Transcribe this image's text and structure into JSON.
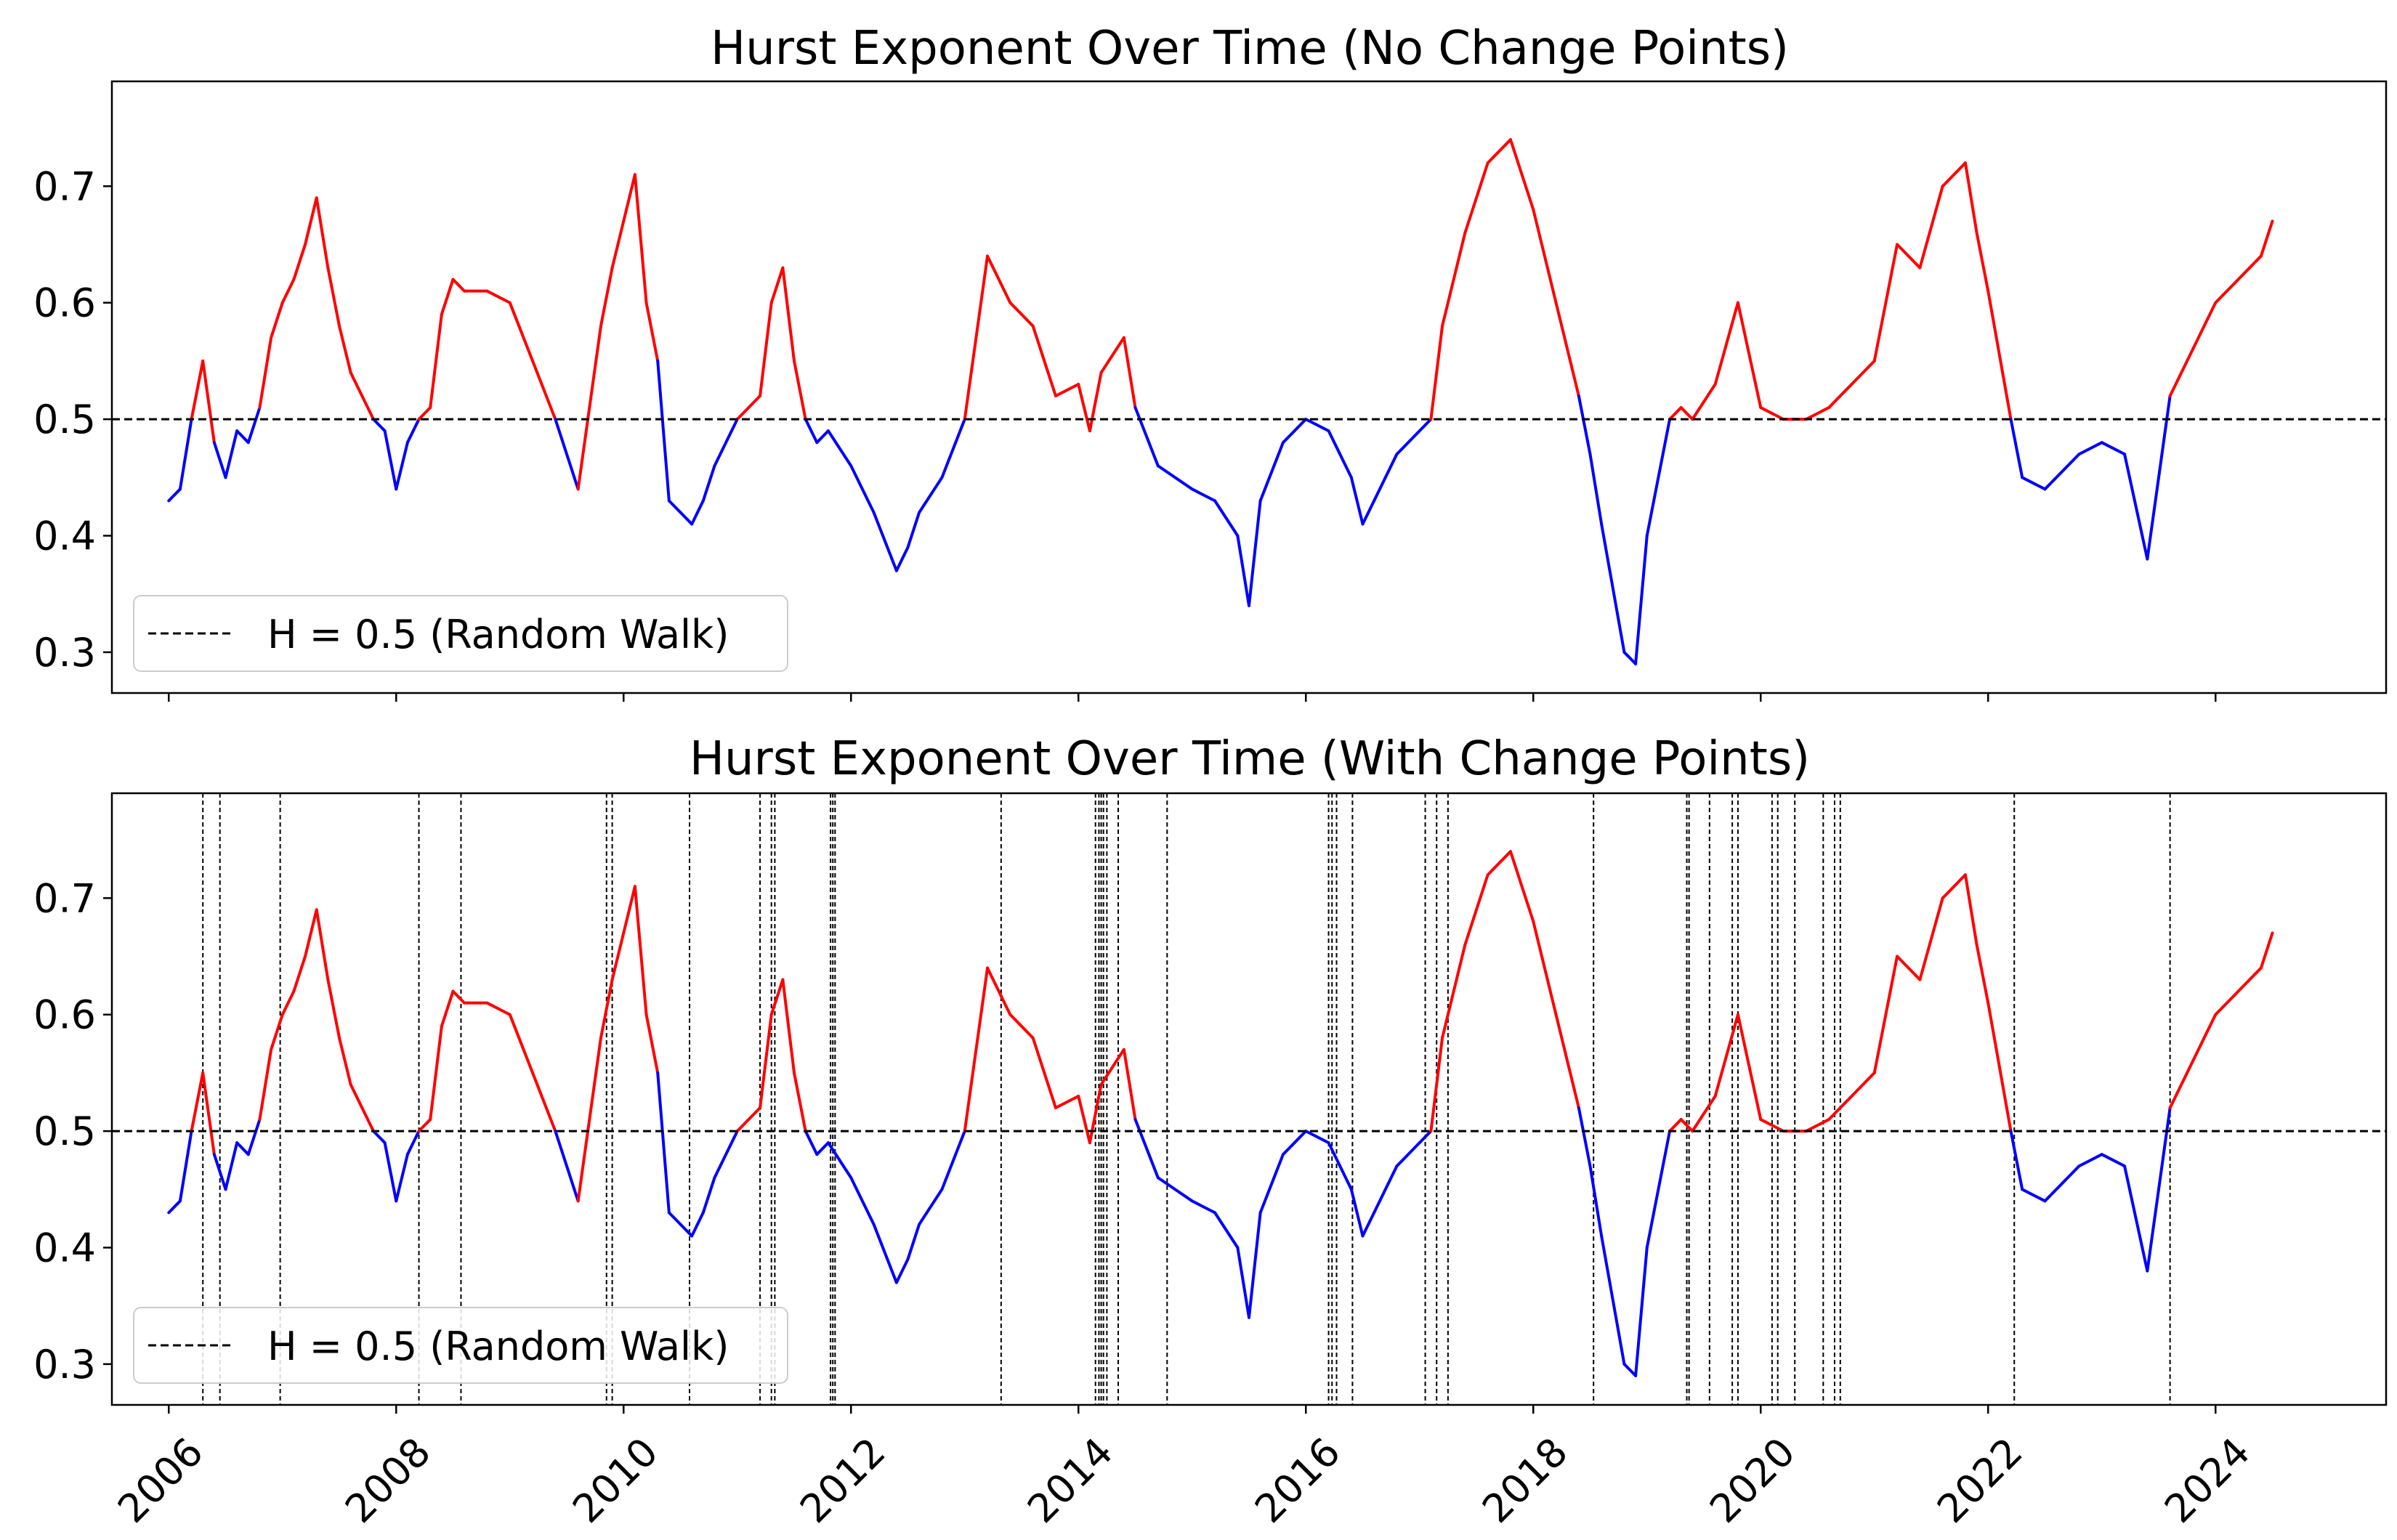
{
  "chart_data": [
    {
      "type": "line",
      "title": "Hurst Exponent Over Time (No Change Points)",
      "xlabel": "",
      "ylabel": "",
      "xlim": [
        2005.5,
        2025.5
      ],
      "ylim": [
        0.265,
        0.79
      ],
      "yticks": [
        0.3,
        0.4,
        0.5,
        0.6,
        0.7
      ],
      "ytick_labels": [
        "0.3",
        "0.4",
        "0.5",
        "0.6",
        "0.7"
      ],
      "xticks": [
        2006,
        2008,
        2010,
        2012,
        2014,
        2016,
        2018,
        2020,
        2022,
        2024
      ],
      "xtick_labels": [],
      "grid": false,
      "legend": {
        "placement": "lower-left",
        "entries": [
          "H = 0.5 (Random Walk)"
        ]
      },
      "reference_line": {
        "y": 0.5,
        "label": "H = 0.5 (Random Walk)",
        "style": "dashed",
        "color": "#000000"
      },
      "coloring": {
        "above_0.5": "#ff0000",
        "below_0.5": "#0000ff"
      },
      "series": [
        {
          "x": [
            2006.0,
            2006.1,
            2006.2,
            2006.3,
            2006.4,
            2006.5,
            2006.6,
            2006.7,
            2006.8,
            2006.9,
            2007.0,
            2007.1,
            2007.2,
            2007.3,
            2007.4,
            2007.5,
            2007.6,
            2007.7,
            2007.8,
            2007.9,
            2008.0,
            2008.1,
            2008.2,
            2008.3,
            2008.4,
            2008.5,
            2008.6,
            2008.8,
            2009.0,
            2009.2,
            2009.4,
            2009.6,
            2009.8,
            2009.9,
            2010.0,
            2010.1,
            2010.2,
            2010.3,
            2010.4,
            2010.5,
            2010.6,
            2010.7,
            2010.8,
            2011.0,
            2011.2,
            2011.3,
            2011.4,
            2011.5,
            2011.6,
            2011.7,
            2011.8,
            2012.0,
            2012.2,
            2012.4,
            2012.5,
            2012.6,
            2012.8,
            2013.0,
            2013.2,
            2013.4,
            2013.6,
            2013.8,
            2014.0,
            2014.1,
            2014.2,
            2014.4,
            2014.5,
            2014.7,
            2015.0,
            2015.2,
            2015.4,
            2015.5,
            2015.6,
            2015.8,
            2016.0,
            2016.2,
            2016.4,
            2016.5,
            2016.6,
            2016.8,
            2017.0,
            2017.1,
            2017.2,
            2017.4,
            2017.6,
            2017.8,
            2018.0,
            2018.2,
            2018.4,
            2018.5,
            2018.6,
            2018.8,
            2018.9,
            2019.0,
            2019.2,
            2019.3,
            2019.4,
            2019.6,
            2019.8,
            2020.0,
            2020.2,
            2020.4,
            2020.6,
            2020.8,
            2021.0,
            2021.2,
            2021.4,
            2021.6,
            2021.8,
            2021.9,
            2022.0,
            2022.2,
            2022.3,
            2022.5,
            2022.8,
            2023.0,
            2023.2,
            2023.4,
            2023.5,
            2023.6,
            2023.8,
            2024.0,
            2024.2,
            2024.4,
            2024.5
          ],
          "values": [
            0.43,
            0.44,
            0.5,
            0.55,
            0.48,
            0.45,
            0.49,
            0.48,
            0.51,
            0.57,
            0.6,
            0.62,
            0.65,
            0.69,
            0.63,
            0.58,
            0.54,
            0.52,
            0.5,
            0.49,
            0.44,
            0.48,
            0.5,
            0.51,
            0.59,
            0.62,
            0.61,
            0.61,
            0.6,
            0.55,
            0.5,
            0.44,
            0.58,
            0.63,
            0.67,
            0.71,
            0.6,
            0.55,
            0.43,
            0.42,
            0.41,
            0.43,
            0.46,
            0.5,
            0.52,
            0.6,
            0.63,
            0.55,
            0.5,
            0.48,
            0.49,
            0.46,
            0.42,
            0.37,
            0.39,
            0.42,
            0.45,
            0.5,
            0.64,
            0.6,
            0.58,
            0.52,
            0.53,
            0.49,
            0.54,
            0.57,
            0.51,
            0.46,
            0.44,
            0.43,
            0.4,
            0.34,
            0.43,
            0.48,
            0.5,
            0.49,
            0.45,
            0.41,
            0.43,
            0.47,
            0.49,
            0.5,
            0.58,
            0.66,
            0.72,
            0.74,
            0.68,
            0.6,
            0.52,
            0.47,
            0.41,
            0.3,
            0.29,
            0.4,
            0.5,
            0.51,
            0.5,
            0.53,
            0.6,
            0.51,
            0.5,
            0.5,
            0.51,
            0.53,
            0.55,
            0.65,
            0.63,
            0.7,
            0.72,
            0.66,
            0.61,
            0.5,
            0.45,
            0.44,
            0.47,
            0.48,
            0.47,
            0.38,
            0.45,
            0.52,
            0.56,
            0.6,
            0.62,
            0.64,
            0.67
          ]
        }
      ]
    },
    {
      "type": "line",
      "title": "Hurst Exponent Over Time (With Change Points)",
      "xlabel": "",
      "ylabel": "",
      "xlim": [
        2005.5,
        2025.5
      ],
      "ylim": [
        0.265,
        0.79
      ],
      "yticks": [
        0.3,
        0.4,
        0.5,
        0.6,
        0.7
      ],
      "ytick_labels": [
        "0.3",
        "0.4",
        "0.5",
        "0.6",
        "0.7"
      ],
      "xticks": [
        2006,
        2008,
        2010,
        2012,
        2014,
        2016,
        2018,
        2020,
        2022,
        2024
      ],
      "xtick_labels": [
        "2006",
        "2008",
        "2010",
        "2012",
        "2014",
        "2016",
        "2018",
        "2020",
        "2022",
        "2024"
      ],
      "grid": false,
      "legend": {
        "placement": "lower-left",
        "entries": [
          "H = 0.5 (Random Walk)"
        ]
      },
      "reference_line": {
        "y": 0.5,
        "label": "H = 0.5 (Random Walk)",
        "style": "dashed",
        "color": "#000000"
      },
      "coloring": {
        "above_0.5": "#ff0000",
        "below_0.5": "#0000ff"
      },
      "change_points": [
        2006.3,
        2006.45,
        2006.98,
        2008.2,
        2008.57,
        2009.85,
        2009.9,
        2010.58,
        2011.2,
        2011.3,
        2011.33,
        2011.82,
        2011.84,
        2011.86,
        2013.32,
        2014.15,
        2014.18,
        2014.2,
        2014.22,
        2014.25,
        2014.35,
        2014.78,
        2016.2,
        2016.23,
        2016.27,
        2016.41,
        2017.05,
        2017.15,
        2017.25,
        2018.53,
        2019.35,
        2019.37,
        2019.55,
        2019.75,
        2019.8,
        2020.1,
        2020.15,
        2020.3,
        2020.55,
        2020.65,
        2020.7,
        2022.23,
        2023.6
      ],
      "series": [
        {
          "x": [
            2006.0,
            2006.1,
            2006.2,
            2006.3,
            2006.4,
            2006.5,
            2006.6,
            2006.7,
            2006.8,
            2006.9,
            2007.0,
            2007.1,
            2007.2,
            2007.3,
            2007.4,
            2007.5,
            2007.6,
            2007.7,
            2007.8,
            2007.9,
            2008.0,
            2008.1,
            2008.2,
            2008.3,
            2008.4,
            2008.5,
            2008.6,
            2008.8,
            2009.0,
            2009.2,
            2009.4,
            2009.6,
            2009.8,
            2009.9,
            2010.0,
            2010.1,
            2010.2,
            2010.3,
            2010.4,
            2010.5,
            2010.6,
            2010.7,
            2010.8,
            2011.0,
            2011.2,
            2011.3,
            2011.4,
            2011.5,
            2011.6,
            2011.7,
            2011.8,
            2012.0,
            2012.2,
            2012.4,
            2012.5,
            2012.6,
            2012.8,
            2013.0,
            2013.2,
            2013.4,
            2013.6,
            2013.8,
            2014.0,
            2014.1,
            2014.2,
            2014.4,
            2014.5,
            2014.7,
            2015.0,
            2015.2,
            2015.4,
            2015.5,
            2015.6,
            2015.8,
            2016.0,
            2016.2,
            2016.4,
            2016.5,
            2016.6,
            2016.8,
            2017.0,
            2017.1,
            2017.2,
            2017.4,
            2017.6,
            2017.8,
            2018.0,
            2018.2,
            2018.4,
            2018.5,
            2018.6,
            2018.8,
            2018.9,
            2019.0,
            2019.2,
            2019.3,
            2019.4,
            2019.6,
            2019.8,
            2020.0,
            2020.2,
            2020.4,
            2020.6,
            2020.8,
            2021.0,
            2021.2,
            2021.4,
            2021.6,
            2021.8,
            2021.9,
            2022.0,
            2022.2,
            2022.3,
            2022.5,
            2022.8,
            2023.0,
            2023.2,
            2023.4,
            2023.5,
            2023.6,
            2023.8,
            2024.0,
            2024.2,
            2024.4,
            2024.5
          ],
          "values": [
            0.43,
            0.44,
            0.5,
            0.55,
            0.48,
            0.45,
            0.49,
            0.48,
            0.51,
            0.57,
            0.6,
            0.62,
            0.65,
            0.69,
            0.63,
            0.58,
            0.54,
            0.52,
            0.5,
            0.49,
            0.44,
            0.48,
            0.5,
            0.51,
            0.59,
            0.62,
            0.61,
            0.61,
            0.6,
            0.55,
            0.5,
            0.44,
            0.58,
            0.63,
            0.67,
            0.71,
            0.6,
            0.55,
            0.43,
            0.42,
            0.41,
            0.43,
            0.46,
            0.5,
            0.52,
            0.6,
            0.63,
            0.55,
            0.5,
            0.48,
            0.49,
            0.46,
            0.42,
            0.37,
            0.39,
            0.42,
            0.45,
            0.5,
            0.64,
            0.6,
            0.58,
            0.52,
            0.53,
            0.49,
            0.54,
            0.57,
            0.51,
            0.46,
            0.44,
            0.43,
            0.4,
            0.34,
            0.43,
            0.48,
            0.5,
            0.49,
            0.45,
            0.41,
            0.43,
            0.47,
            0.49,
            0.5,
            0.58,
            0.66,
            0.72,
            0.74,
            0.68,
            0.6,
            0.52,
            0.47,
            0.41,
            0.3,
            0.29,
            0.4,
            0.5,
            0.51,
            0.5,
            0.53,
            0.6,
            0.51,
            0.5,
            0.5,
            0.51,
            0.53,
            0.55,
            0.65,
            0.63,
            0.7,
            0.72,
            0.66,
            0.61,
            0.5,
            0.45,
            0.44,
            0.47,
            0.48,
            0.47,
            0.38,
            0.45,
            0.52,
            0.56,
            0.6,
            0.62,
            0.64,
            0.67
          ]
        }
      ]
    }
  ]
}
